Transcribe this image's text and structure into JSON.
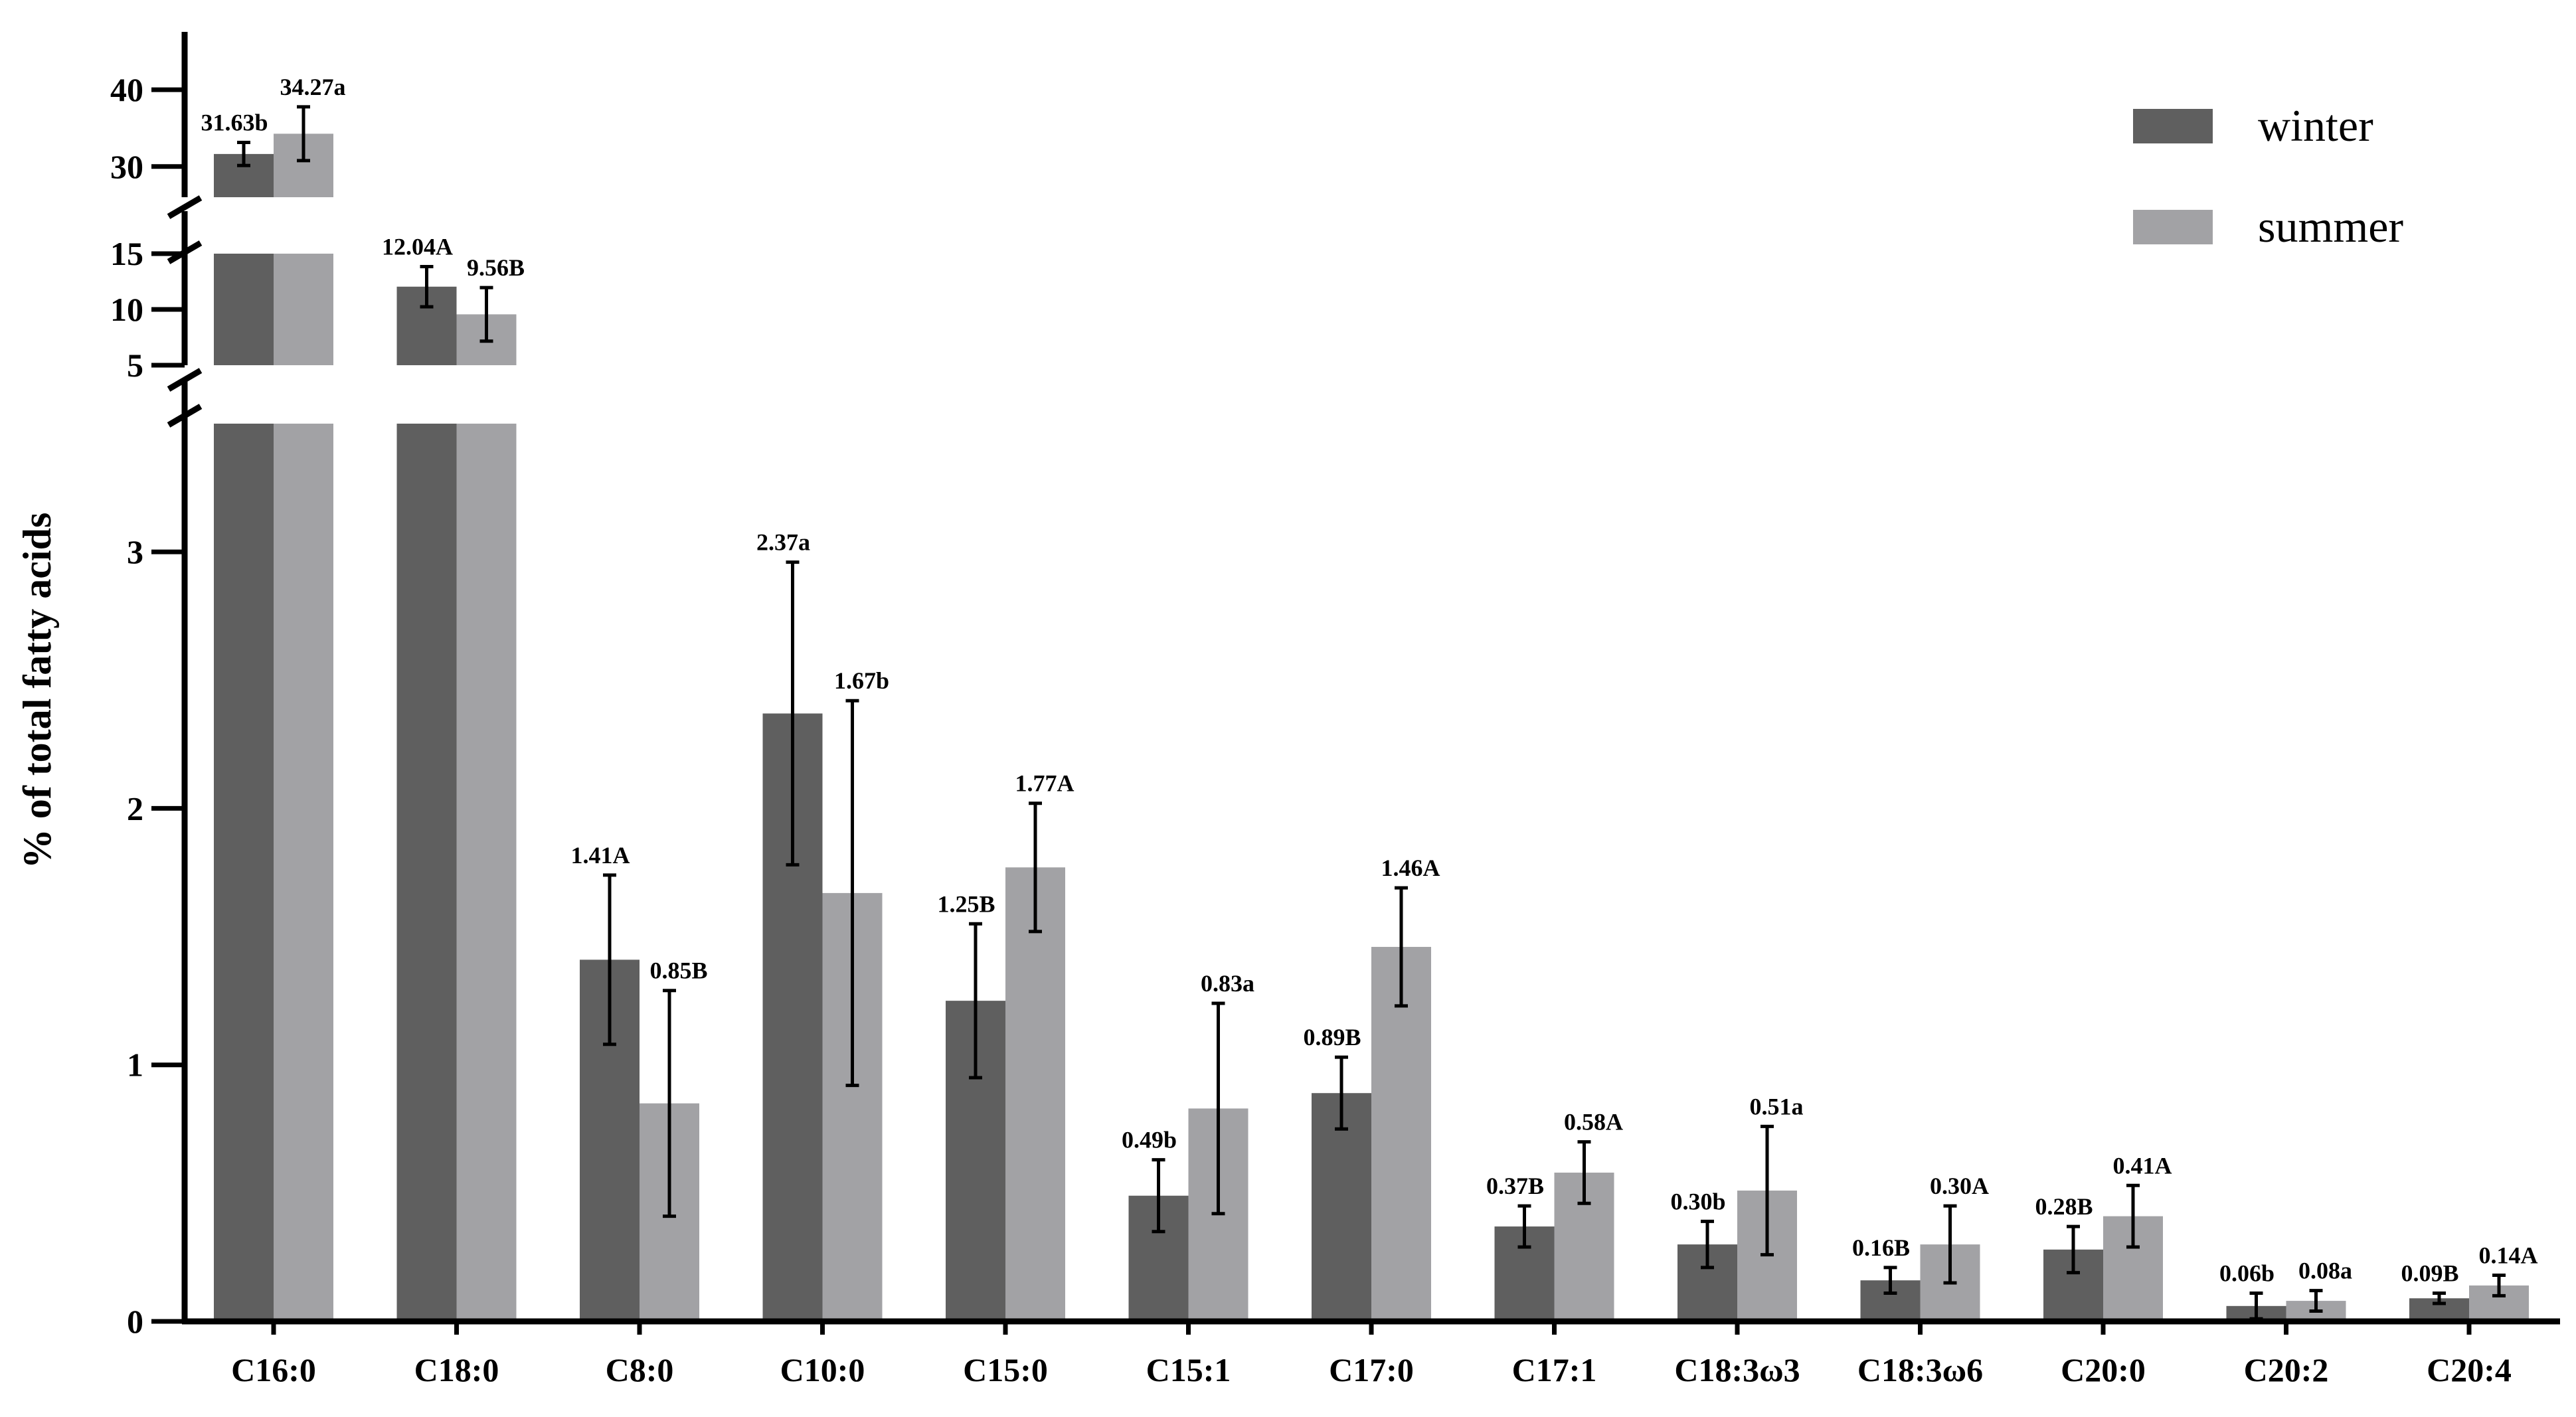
{
  "chart_data": {
    "type": "bar",
    "ylabel": "% of total fatty acids",
    "xlabel": "",
    "categories": [
      "C16:0",
      "C18:0",
      "C8:0",
      "C10:0",
      "C15:0",
      "C15:1",
      "C17:0",
      "C17:1",
      "C18:3ω3",
      "C18:3ω6",
      "C20:0",
      "C20:2",
      "C20:4"
    ],
    "y_axis": {
      "broken": true,
      "segments": [
        {
          "range": [
            0,
            3.5
          ],
          "ticks": [
            0,
            1,
            2,
            3
          ]
        },
        {
          "range": [
            5,
            15
          ],
          "ticks": [
            5,
            10,
            15
          ]
        },
        {
          "range": [
            26,
            42
          ],
          "ticks": [
            30,
            40
          ]
        }
      ]
    },
    "series": [
      {
        "name": "winter",
        "color": "#5f5f5f",
        "values": [
          31.63,
          12.04,
          1.41,
          2.37,
          1.25,
          0.49,
          0.89,
          0.37,
          0.3,
          0.16,
          0.28,
          0.06,
          0.09
        ],
        "errors": [
          1.5,
          1.8,
          0.33,
          0.59,
          0.3,
          0.14,
          0.14,
          0.08,
          0.09,
          0.05,
          0.09,
          0.05,
          0.02
        ],
        "labels": [
          "31.63b",
          "12.04A",
          "1.41A",
          "2.37a",
          "1.25B",
          "0.49b",
          "0.89B",
          "0.37B",
          "0.30b",
          "0.16B",
          "0.28B",
          "0.06b",
          "0.09B"
        ]
      },
      {
        "name": "summer",
        "color": "#a2a2a5",
        "values": [
          34.27,
          9.56,
          0.85,
          1.67,
          1.77,
          0.83,
          1.46,
          0.58,
          0.51,
          0.3,
          0.41,
          0.08,
          0.14
        ],
        "errors": [
          3.5,
          2.4,
          0.44,
          0.75,
          0.25,
          0.41,
          0.23,
          0.12,
          0.25,
          0.15,
          0.12,
          0.04,
          0.04
        ],
        "labels": [
          "34.27a",
          "9.56B",
          "0.85B",
          "1.67b",
          "1.77A",
          "0.83a",
          "1.46A",
          "0.58A",
          "0.51a",
          "0.30A",
          "0.41A",
          "0.08a",
          "0.14A"
        ]
      }
    ],
    "legend": {
      "position": "top-right",
      "entries": [
        "winter",
        "summer"
      ]
    },
    "grid": false
  }
}
